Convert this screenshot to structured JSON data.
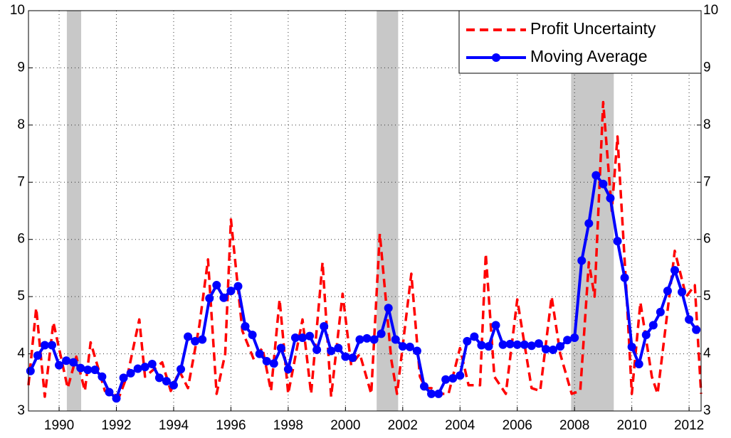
{
  "chart_data": {
    "type": "line",
    "xlim": [
      1988.93,
      2012.42
    ],
    "xticks": [
      1990,
      1992,
      1994,
      1996,
      1998,
      2000,
      2002,
      2004,
      2006,
      2008,
      2010,
      2012
    ],
    "ylim": [
      3,
      10
    ],
    "yticks": [
      3,
      4,
      5,
      6,
      7,
      8,
      9,
      10
    ],
    "grid": true,
    "legend": "upper right",
    "shaded_regions": {
      "color": "#c8c8c8",
      "ranges": [
        [
          1990.27,
          1990.77
        ],
        [
          2001.09,
          2001.84
        ],
        [
          2007.88,
          2009.37
        ]
      ]
    },
    "series": [
      {
        "name": "Profit Uncertainty",
        "color": "#ff0000",
        "style": "dashed",
        "x": [
          1988.93,
          1989.2,
          1989.5,
          1989.8,
          1990.3,
          1990.6,
          1990.9,
          1991.1,
          1991.6,
          1992.1,
          1992.4,
          1992.8,
          1993.0,
          1993.6,
          1993.9,
          1994.2,
          1994.5,
          1994.9,
          1995.2,
          1995.5,
          1995.8,
          1996.0,
          1996.4,
          1996.8,
          1997.1,
          1997.4,
          1997.7,
          1998.0,
          1998.5,
          1998.8,
          1999.2,
          1999.5,
          1999.9,
          2000.2,
          2000.5,
          2000.9,
          2001.2,
          2001.6,
          2001.8,
          2002.3,
          2002.6,
          2002.8,
          2003.0,
          2003.3,
          2003.6,
          2004.0,
          2004.3,
          2004.7,
          2004.9,
          2005.2,
          2005.6,
          2006.0,
          2006.5,
          2006.8,
          2007.2,
          2007.5,
          2007.9,
          2008.2,
          2008.5,
          2008.7,
          2009.0,
          2009.3,
          2009.5,
          2009.8,
          2010.0,
          2010.3,
          2010.7,
          2010.9,
          2011.5,
          2011.9,
          2012.2,
          2012.42
        ],
        "values": [
          3.45,
          4.8,
          3.25,
          4.55,
          3.4,
          3.95,
          3.35,
          4.2,
          3.35,
          3.25,
          3.65,
          4.6,
          3.6,
          3.85,
          3.35,
          3.7,
          3.4,
          4.5,
          5.65,
          3.3,
          4.0,
          6.35,
          4.4,
          3.9,
          4.1,
          3.35,
          4.95,
          3.3,
          4.6,
          3.3,
          5.6,
          3.25,
          5.05,
          3.8,
          4.0,
          3.3,
          6.1,
          3.9,
          3.3,
          5.4,
          3.6,
          3.4,
          3.4,
          3.3,
          3.3,
          4.1,
          3.45,
          3.45,
          5.75,
          3.6,
          3.3,
          4.95,
          3.4,
          3.35,
          5.0,
          4.0,
          3.3,
          3.35,
          5.6,
          5.0,
          8.4,
          6.5,
          7.8,
          5.2,
          3.3,
          4.9,
          3.6,
          3.3,
          5.8,
          5.0,
          5.2,
          3.3
        ]
      },
      {
        "name": "Moving Average",
        "color": "#0000ff",
        "style": "solid-markers",
        "x": [
          1989.0,
          1989.25,
          1989.5,
          1989.75,
          1990.0,
          1990.25,
          1990.5,
          1990.75,
          1991.0,
          1991.25,
          1991.5,
          1991.75,
          1992.0,
          1992.25,
          1992.5,
          1992.75,
          1993.0,
          1993.25,
          1993.5,
          1993.75,
          1994.0,
          1994.25,
          1994.5,
          1994.75,
          1995.0,
          1995.25,
          1995.5,
          1995.75,
          1996.0,
          1996.25,
          1996.5,
          1996.75,
          1997.0,
          1997.25,
          1997.5,
          1997.75,
          1998.0,
          1998.25,
          1998.5,
          1998.75,
          1999.0,
          1999.25,
          1999.5,
          1999.75,
          2000.0,
          2000.25,
          2000.5,
          2000.75,
          2001.0,
          2001.25,
          2001.5,
          2001.75,
          2002.0,
          2002.25,
          2002.5,
          2002.75,
          2003.0,
          2003.25,
          2003.5,
          2003.75,
          2004.0,
          2004.25,
          2004.5,
          2004.75,
          2005.0,
          2005.25,
          2005.5,
          2005.75,
          2006.0,
          2006.25,
          2006.5,
          2006.75,
          2007.0,
          2007.25,
          2007.5,
          2007.75,
          2008.0,
          2008.25,
          2008.5,
          2008.75,
          2009.0,
          2009.25,
          2009.5,
          2009.75,
          2010.0,
          2010.25,
          2010.5,
          2010.75,
          2011.0,
          2011.25,
          2011.5,
          2011.75,
          2012.0,
          2012.25
        ],
        "values": [
          3.7,
          3.97,
          4.15,
          4.15,
          3.8,
          3.88,
          3.85,
          3.75,
          3.72,
          3.72,
          3.6,
          3.33,
          3.22,
          3.58,
          3.66,
          3.74,
          3.77,
          3.82,
          3.58,
          3.52,
          3.45,
          3.73,
          4.3,
          4.22,
          4.25,
          4.97,
          5.2,
          4.98,
          5.1,
          5.18,
          4.48,
          4.33,
          4.0,
          3.87,
          3.83,
          4.1,
          3.73,
          4.28,
          4.28,
          4.31,
          4.07,
          4.48,
          4.05,
          4.1,
          3.95,
          3.93,
          4.25,
          4.27,
          4.25,
          4.35,
          4.8,
          4.25,
          4.13,
          4.12,
          4.05,
          3.43,
          3.3,
          3.3,
          3.55,
          3.57,
          3.62,
          4.22,
          4.3,
          4.15,
          4.13,
          4.5,
          4.16,
          4.17,
          4.16,
          4.16,
          4.14,
          4.18,
          4.08,
          4.07,
          4.13,
          4.24,
          4.28,
          5.63,
          6.28,
          7.12,
          6.97,
          6.72,
          5.97,
          5.33,
          4.12,
          3.82,
          4.33,
          4.5,
          4.73,
          5.1,
          5.46,
          5.08,
          4.6,
          4.42
        ]
      }
    ]
  }
}
